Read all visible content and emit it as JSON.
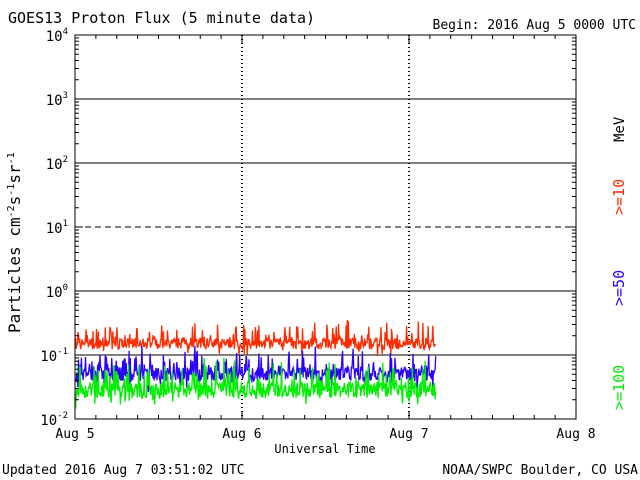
{
  "chart_data": {
    "type": "line",
    "title": "GOES13 Proton Flux (5 minute data)",
    "begin_label": "Begin: 2016 Aug 5 0000 UTC",
    "xlabel": "Universal Time",
    "ylabel_main": "Particles cm",
    "ylabel_sup1": "-2",
    "ylabel_mid1": "s",
    "ylabel_sup2": "-1",
    "ylabel_mid2": "sr",
    "ylabel_sup3": "-1",
    "x_ticks": [
      "Aug 5",
      "Aug 6",
      "Aug 7",
      "Aug 8"
    ],
    "xlim_days": [
      0,
      3
    ],
    "y_scale": "log",
    "ylim_exp": [
      -2,
      4
    ],
    "y_tick_base": "10",
    "y_tick_exps": [
      "-2",
      "-1",
      "0",
      "1",
      "2",
      "3",
      "4"
    ],
    "data_end_day": 2.16,
    "threshold_line": {
      "value_exp": 1,
      "style": "dashed"
    },
    "energy_unit": "MeV",
    "series": [
      {
        "name": ">=10",
        "color": "#ff2a00",
        "base_log": -0.82,
        "amp_log": 0.3
      },
      {
        "name": ">=50",
        "color": "#2a00ff",
        "base_log": -1.3,
        "amp_log": 0.36
      },
      {
        "name": ">=100",
        "color": "#00ee00",
        "base_log": -1.55,
        "amp_log": 0.42
      }
    ]
  },
  "footer": {
    "updated": "Updated 2016 Aug  7 03:51:02 UTC",
    "source": "NOAA/SWPC Boulder, CO USA"
  }
}
